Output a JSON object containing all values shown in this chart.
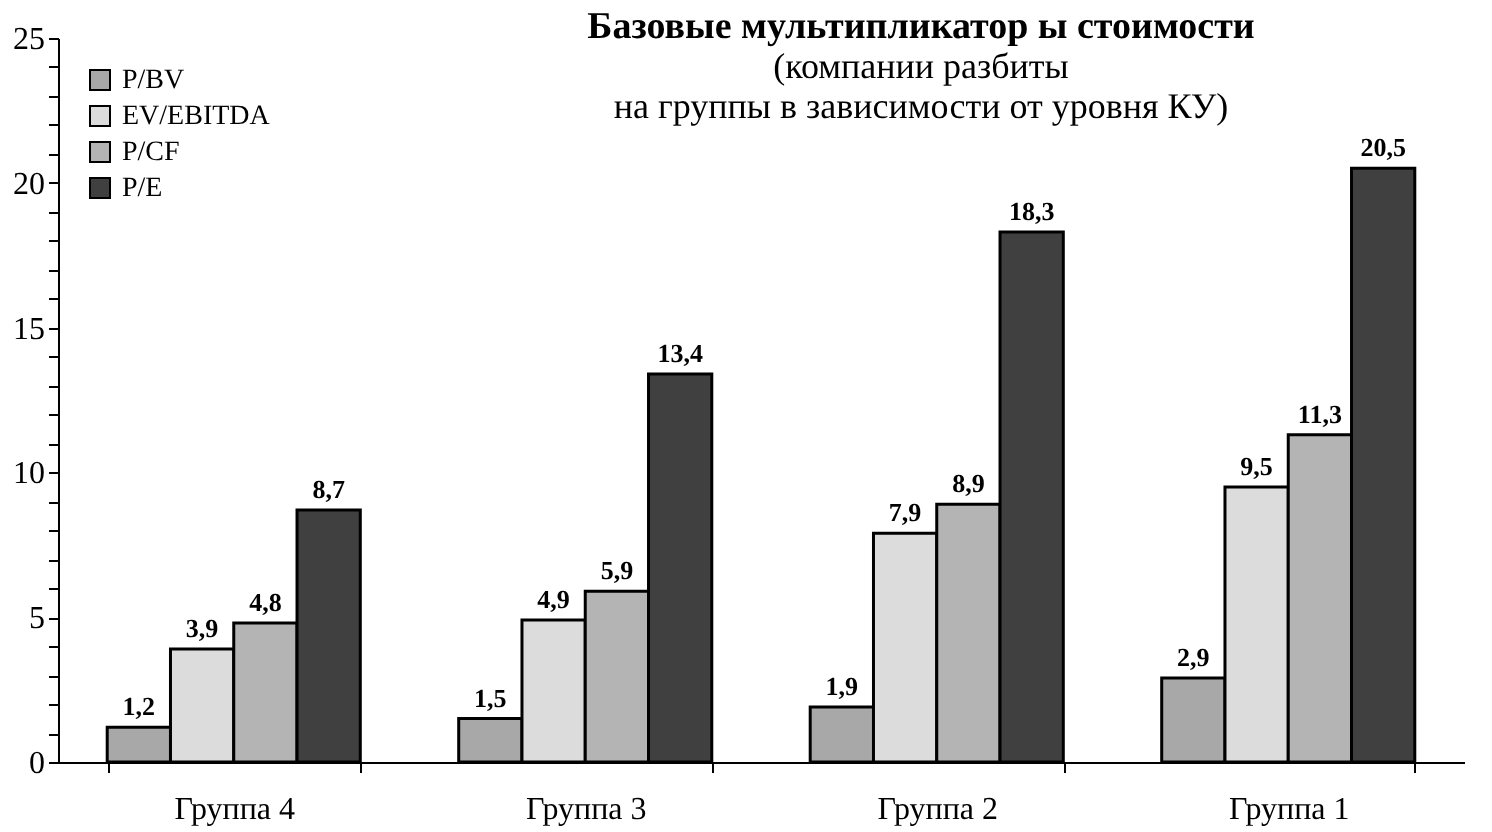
{
  "chart_data": {
    "type": "bar",
    "title": "Базовые мультипликатор ы стоимости",
    "subtitle": "(компании разбиты\nна группы в зависимости от  уровня КУ)",
    "categories": [
      "Группа 4",
      "Группа 3",
      "Группа 2",
      "Группа 1"
    ],
    "series": [
      {
        "name": "P/BV",
        "color": "#a8a8a8",
        "values": [
          1.2,
          1.5,
          1.9,
          2.9
        ],
        "value_labels": [
          "1,2",
          "1,5",
          "1,9",
          "2,9"
        ]
      },
      {
        "name": "EV/EBITDA",
        "color": "#dcdcdc",
        "values": [
          3.9,
          4.9,
          7.9,
          9.5
        ],
        "value_labels": [
          "3,9",
          "4,9",
          "7,9",
          "9,5"
        ]
      },
      {
        "name": "P/CF",
        "color": "#b4b4b4",
        "values": [
          4.8,
          5.9,
          8.9,
          11.3
        ],
        "value_labels": [
          "4,8",
          "5,9",
          "8,9",
          "11,3"
        ]
      },
      {
        "name": "P/E",
        "color": "#404040",
        "values": [
          8.7,
          13.4,
          18.3,
          20.5
        ],
        "value_labels": [
          "8,7",
          "13,4",
          "18,3",
          "20,5"
        ]
      }
    ],
    "ylim": [
      0,
      25
    ],
    "yticks": [
      0,
      {
        "value": 1,
        "label": null
      },
      {
        "value": 2,
        "label": null
      },
      {
        "value": 3,
        "label": null
      },
      {
        "value": 4,
        "label": null
      },
      5,
      {
        "value": 6,
        "label": null
      },
      {
        "value": 7,
        "label": null
      },
      {
        "value": 8,
        "label": null
      },
      {
        "value": 9,
        "label": null
      },
      10,
      {
        "value": 11,
        "label": null
      },
      {
        "value": 12,
        "label": null
      },
      {
        "value": 13,
        "label": null
      },
      {
        "value": 14,
        "label": null
      },
      15,
      {
        "value": 16,
        "label": null
      },
      {
        "value": 17,
        "label": null
      },
      {
        "value": 18,
        "label": null
      },
      {
        "value": 19,
        "label": null
      },
      20,
      {
        "value": 21,
        "label": null
      },
      {
        "value": 22,
        "label": null
      },
      {
        "value": 23,
        "label": null
      },
      {
        "value": 24,
        "label": null
      },
      25
    ],
    "grid": false,
    "legend": "top left"
  }
}
